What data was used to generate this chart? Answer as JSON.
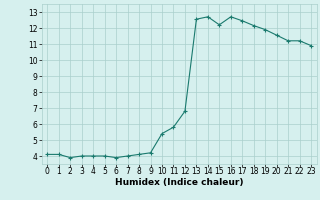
{
  "x": [
    0,
    1,
    2,
    3,
    4,
    5,
    6,
    7,
    8,
    9,
    10,
    11,
    12,
    13,
    14,
    15,
    16,
    17,
    18,
    19,
    20,
    21,
    22,
    23
  ],
  "y": [
    4.1,
    4.1,
    3.9,
    4.0,
    4.0,
    4.0,
    3.9,
    4.0,
    4.1,
    4.2,
    5.4,
    5.8,
    6.8,
    12.55,
    12.7,
    12.2,
    12.7,
    12.45,
    12.15,
    11.9,
    11.55,
    11.2,
    11.2,
    10.9
  ],
  "line_color": "#1a7a6e",
  "marker": "+",
  "bg_color": "#d6f0ee",
  "grid_color": "#aacfcc",
  "xlabel": "Humidex (Indice chaleur)",
  "xlim": [
    -0.5,
    23.5
  ],
  "ylim": [
    3.5,
    13.5
  ],
  "yticks": [
    4,
    5,
    6,
    7,
    8,
    9,
    10,
    11,
    12,
    13
  ],
  "xticks": [
    0,
    1,
    2,
    3,
    4,
    5,
    6,
    7,
    8,
    9,
    10,
    11,
    12,
    13,
    14,
    15,
    16,
    17,
    18,
    19,
    20,
    21,
    22,
    23
  ],
  "tick_fontsize": 5.5,
  "label_fontsize": 6.5
}
